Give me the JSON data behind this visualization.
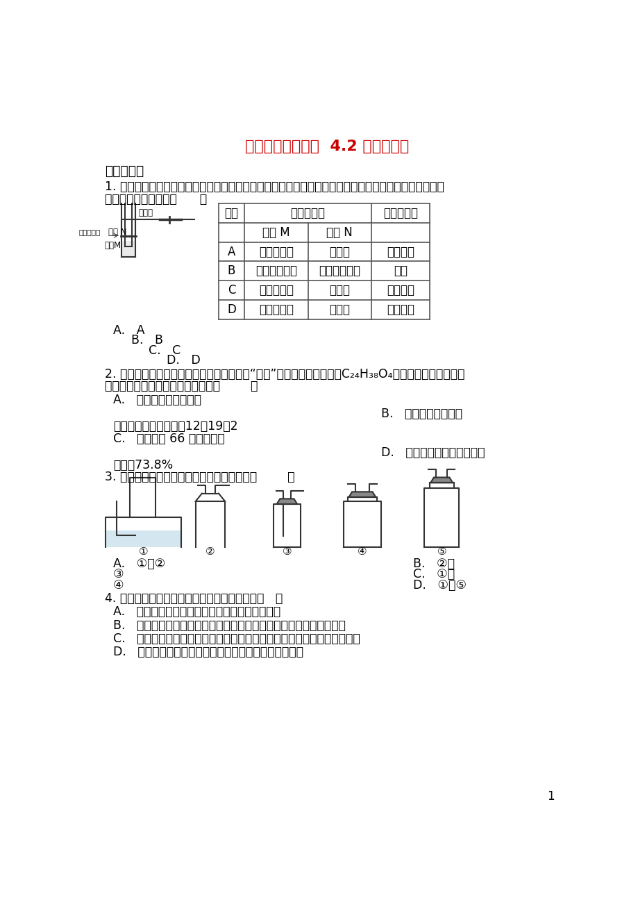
{
  "title": "鲁教版八年级化学  4.2 氧气练习题",
  "title_color": "#cc0000",
  "bg_color": "#ffffff",
  "text_color": "#000000",
  "section1": "一、单选题",
  "table_rows": [
    [
      "A",
      "块状大理石",
      "稀硫酸",
      "二氧化碳"
    ],
    [
      "B",
      "二氧化锰粉末",
      "过氧化氢溶液",
      "氧气"
    ],
    [
      "C",
      "块状大理石",
      "稀盐酸",
      "二氧化碳"
    ],
    [
      "D",
      "碳酸钠粉末",
      "稀盐酸",
      "二氧化碳"
    ]
  ],
  "page_num": "1"
}
